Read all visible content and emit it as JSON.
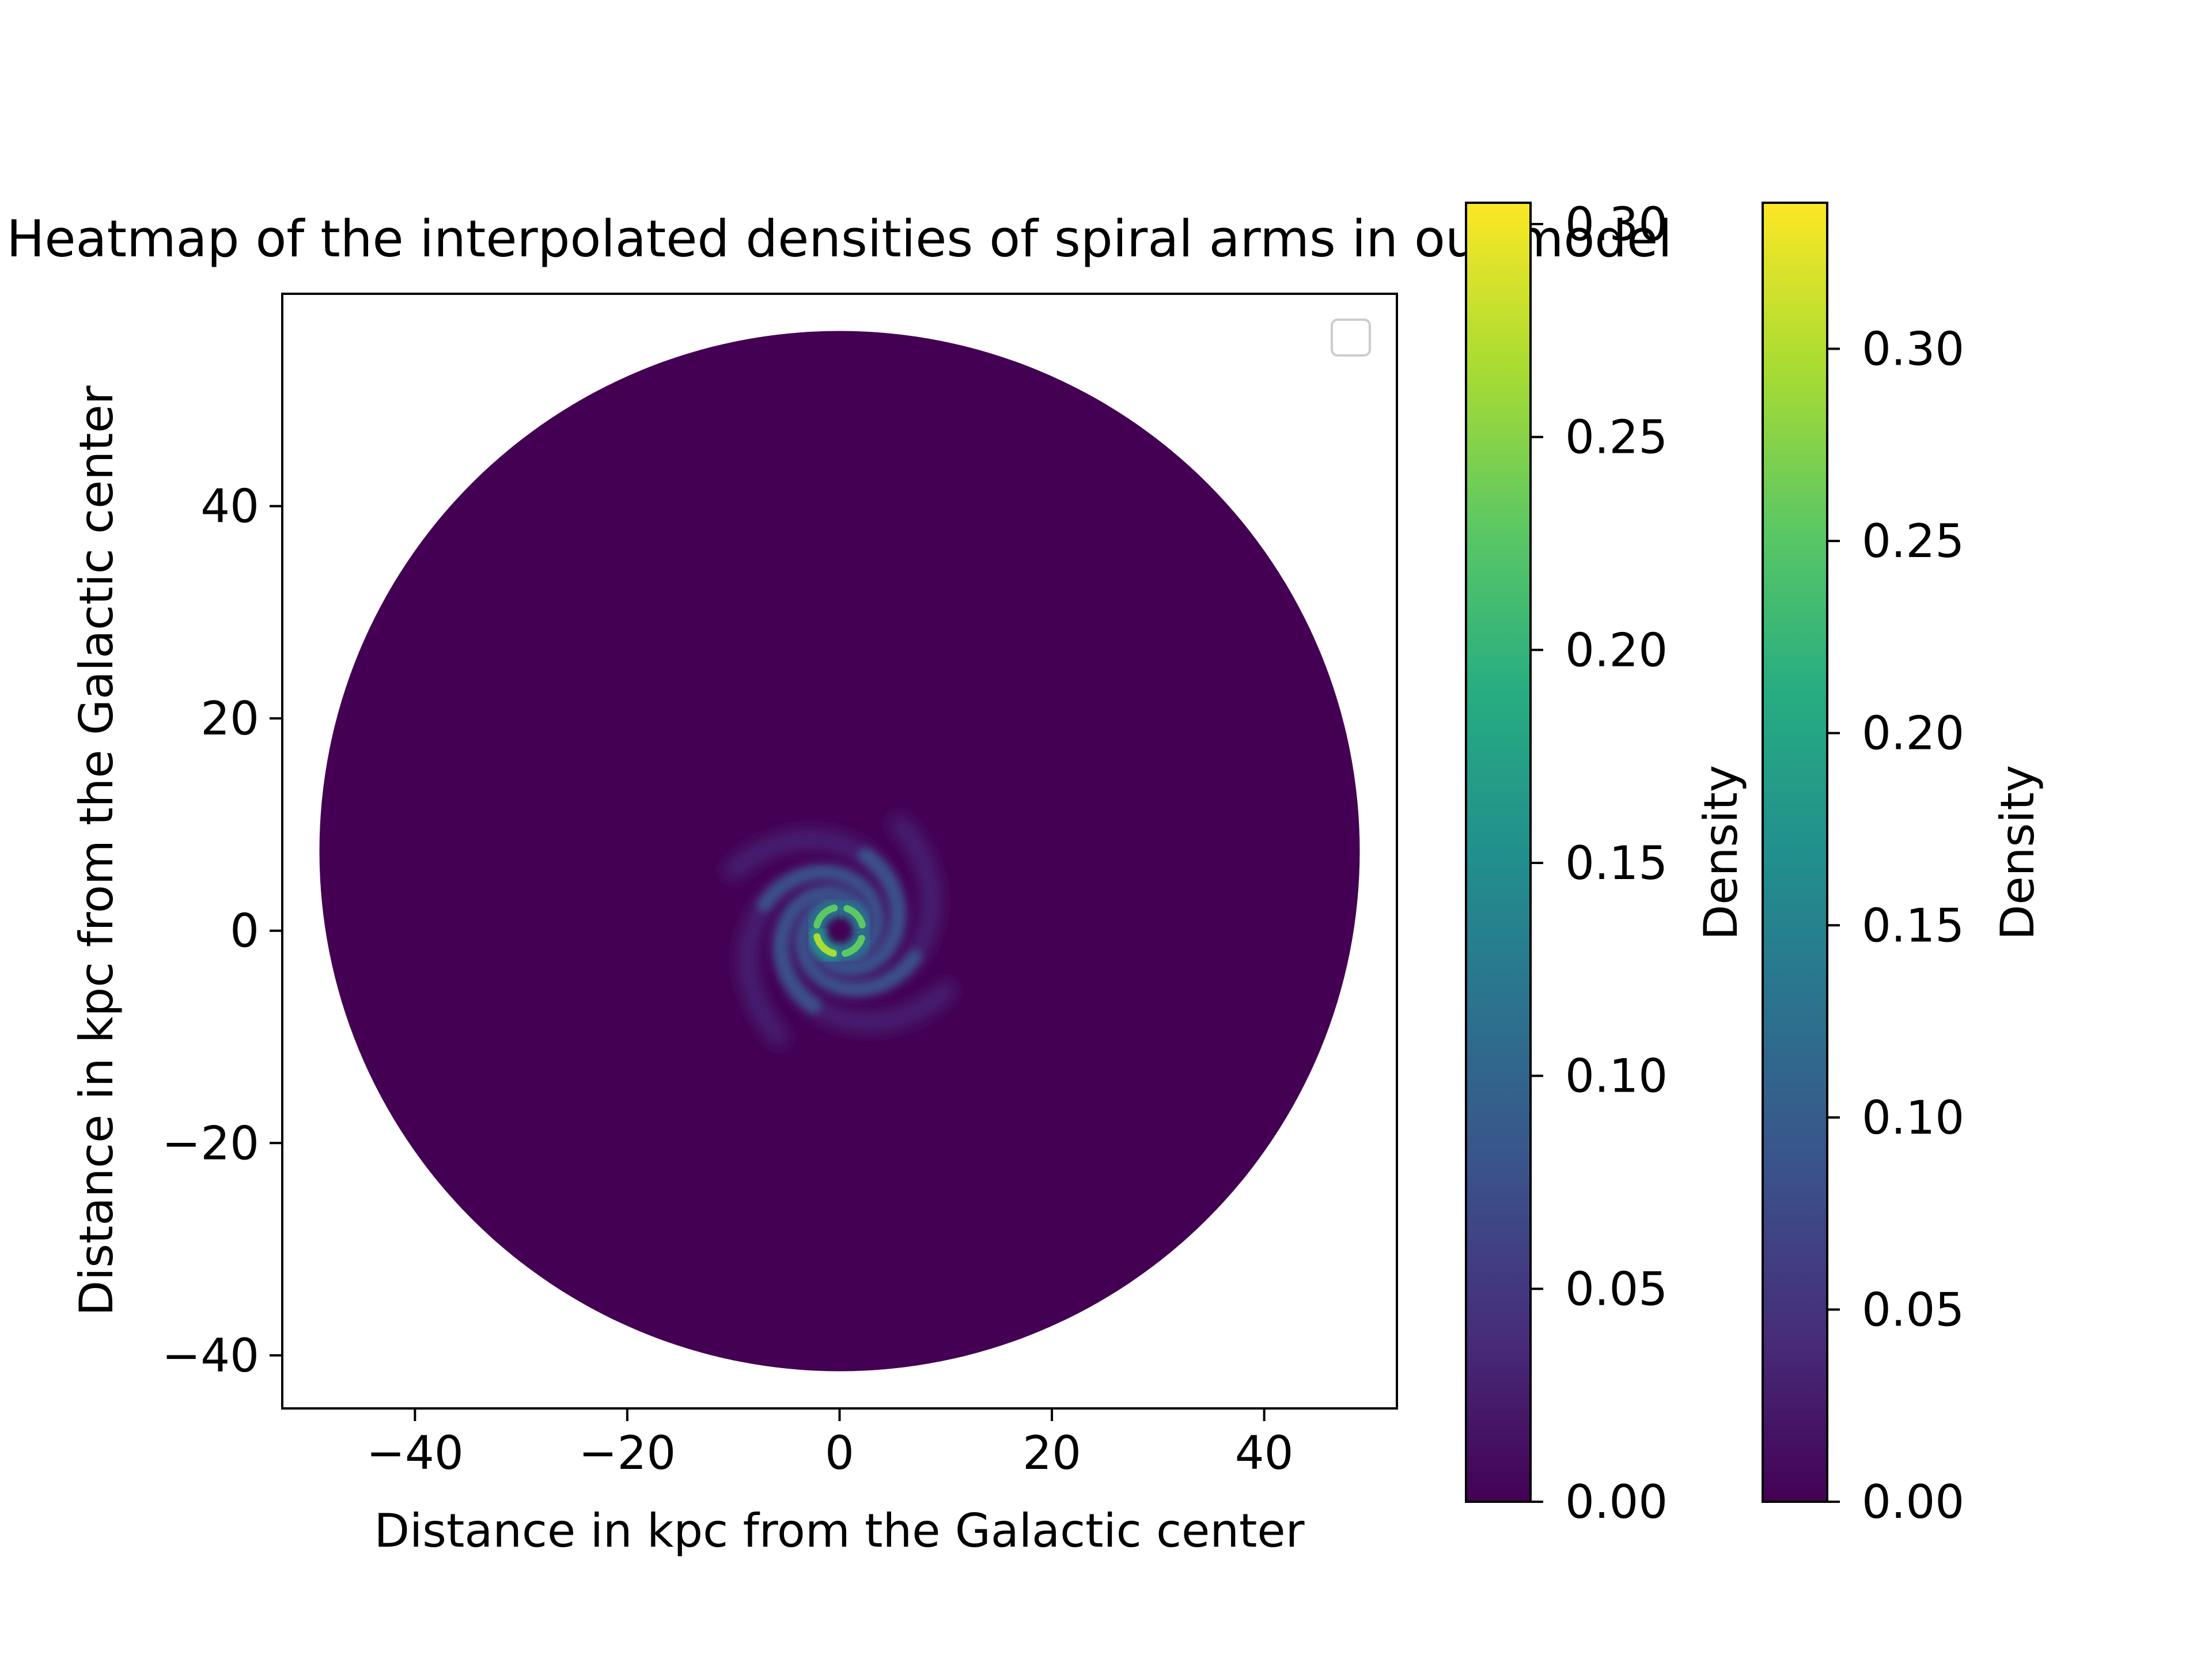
{
  "chart_data": [
    {
      "type": "heatmap",
      "title": "Heatmap of the interpolated densities of spiral arms in our model",
      "xlabel": "Distance in kpc from the Galactic center",
      "ylabel": "Distance in kpc from the Galactic center",
      "xlim": [
        -52.5,
        52.5
      ],
      "ylim": [
        -45,
        60
      ],
      "xticks": [
        -40,
        -20,
        0,
        20,
        40
      ],
      "yticks": [
        -40,
        -20,
        0,
        20,
        40
      ],
      "xtick_labels": [
        "−40",
        "−20",
        "0",
        "20",
        "40"
      ],
      "ytick_labels": [
        "−40",
        "−20",
        "0",
        "20",
        "40"
      ],
      "disk": {
        "center": [
          0,
          7.5
        ],
        "radius": 49
      },
      "spiral_center": [
        0,
        0
      ],
      "background_value": 0.0,
      "peak_value": 0.31,
      "colormap": "viridis",
      "legend": {
        "placement": "upper right",
        "entries": []
      },
      "grid": false
    },
    {
      "type": "colorbar",
      "label": "Density",
      "range": [
        0,
        0.305
      ],
      "ticks": [
        0.0,
        0.05,
        0.1,
        0.15,
        0.2,
        0.25,
        0.3
      ],
      "tick_labels": [
        "0.00",
        "0.05",
        "0.10",
        "0.15",
        "0.20",
        "0.25",
        "0.30"
      ],
      "colormap": "viridis"
    },
    {
      "type": "colorbar",
      "label": "Density",
      "range": [
        0,
        0.338
      ],
      "ticks": [
        0.0,
        0.05,
        0.1,
        0.15,
        0.2,
        0.25,
        0.3
      ],
      "tick_labels": [
        "0.00",
        "0.05",
        "0.10",
        "0.15",
        "0.20",
        "0.25",
        "0.30"
      ],
      "colormap": "viridis"
    }
  ],
  "colors": {
    "viridis": [
      "#440154",
      "#472c7a",
      "#3b518b",
      "#2c718e",
      "#21908d",
      "#27ad81",
      "#5cc863",
      "#aadc32",
      "#fde725"
    ],
    "axes": "#000000",
    "legend_border": "#cccccc"
  }
}
